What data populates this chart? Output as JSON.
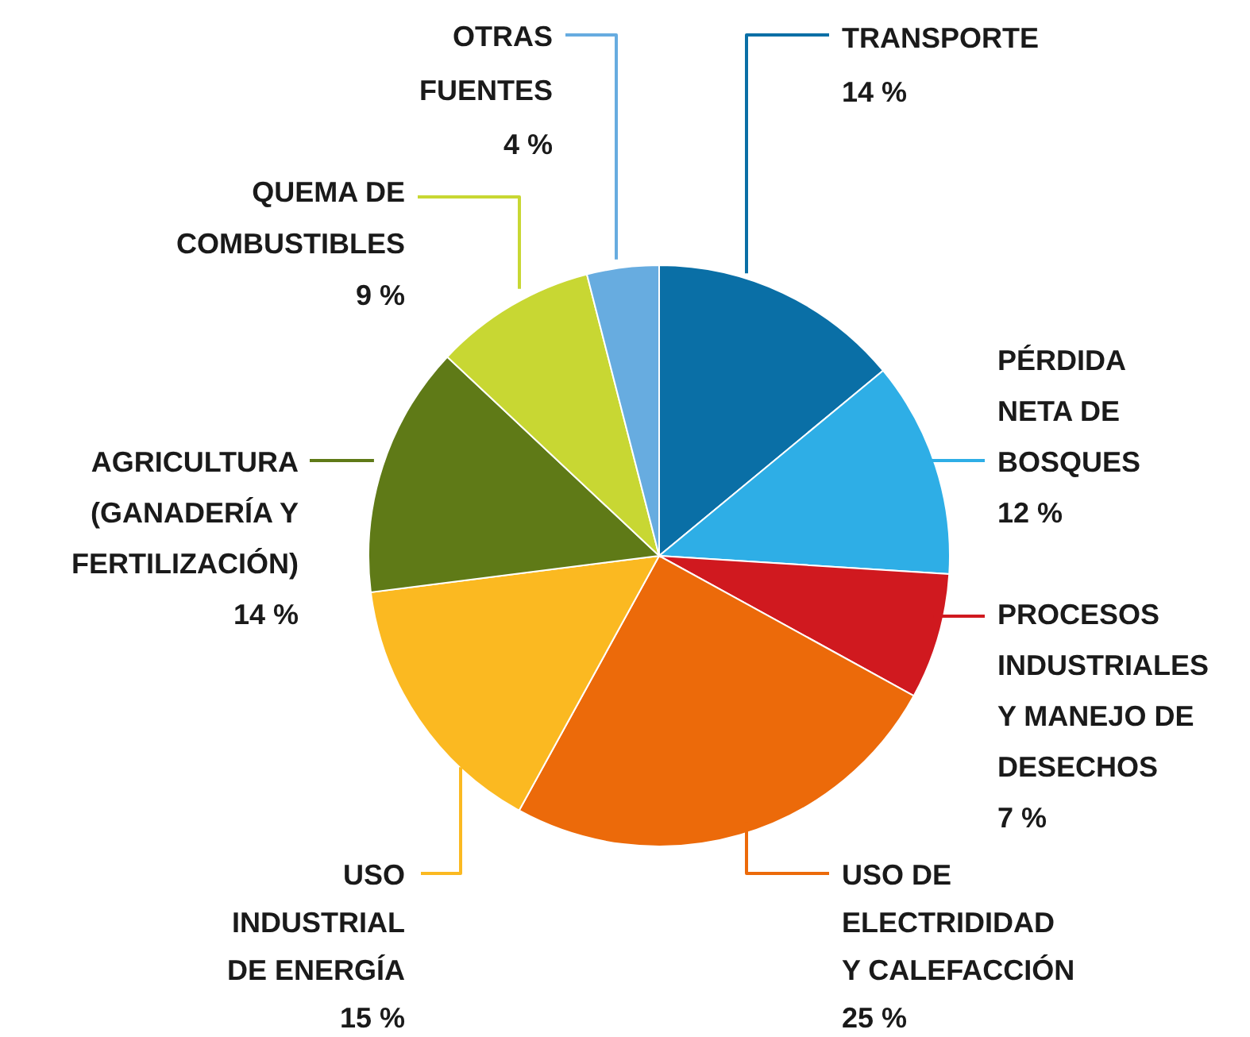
{
  "chart_data": {
    "type": "pie",
    "categories": [
      "TRANSPORTE",
      "PÉRDIDA\nNETA DE\nBOSQUES",
      "PROCESOS\nINDUSTRIALES\nY MANEJO DE\nDESECHOS",
      "USO DE\nELECTRIDIDAD\nY CALEFACCIÓN",
      "USO\nINDUSTRIAL\nDE ENERGÍA",
      "AGRICULTURA\n(GANADERÍA Y\nFERTILIZACIÓN)",
      "QUEMA DE\nCOMBUSTIBLES",
      "OTRAS\nFUENTES"
    ],
    "values": [
      14,
      12,
      7,
      25,
      15,
      14,
      9,
      4
    ],
    "colors": [
      "#0a6fa6",
      "#2eaee6",
      "#d0191f",
      "#ec6a0a",
      "#fbb921",
      "#5f7a17",
      "#c8d733",
      "#67ace0"
    ],
    "value_labels": [
      "14 %",
      "12 %",
      "7 %",
      "25 %",
      "15 %",
      "14 %",
      "9 %",
      "4 %"
    ]
  }
}
